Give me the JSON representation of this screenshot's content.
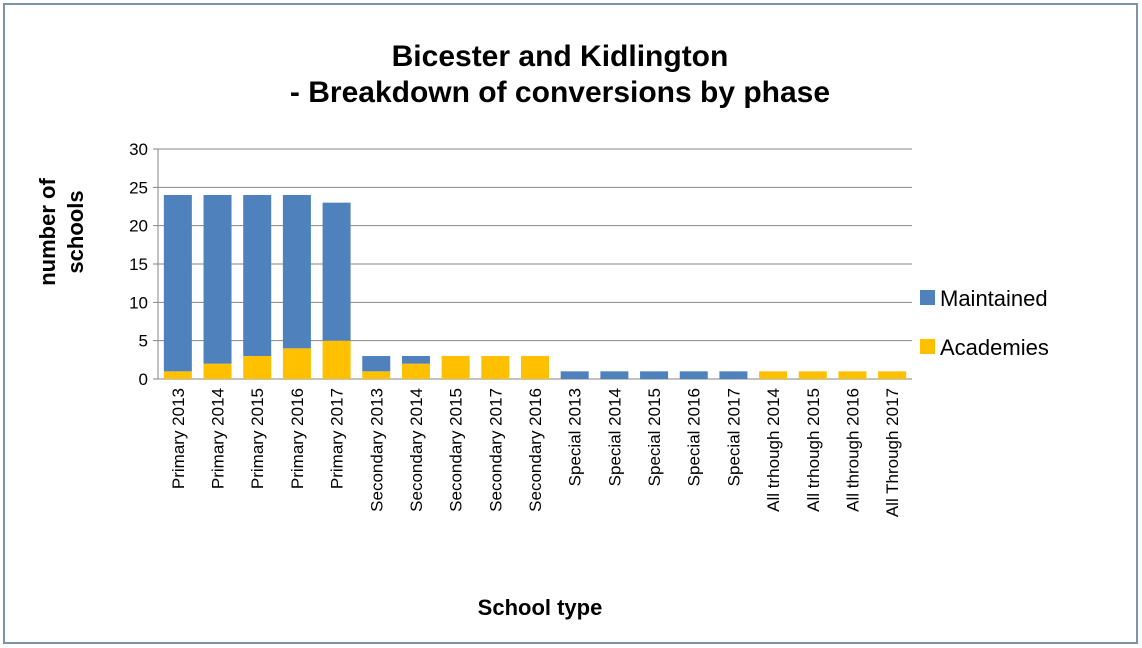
{
  "chart_data": {
    "type": "stacked_bar",
    "title": [
      "Bicester and Kidlington",
      "- Breakdown of conversions by phase"
    ],
    "y_label": [
      "number of",
      "schools"
    ],
    "x_label": "School type",
    "categories": [
      "Primary 2013",
      "Primary 2014",
      "Primary 2015",
      "Primary 2016",
      "Primary 2017",
      "Secondary 2013",
      "Secondary 2014",
      "Secondary 2015",
      "Secondary 2017",
      "Secondary 2016",
      "Special 2013",
      "Special 2014",
      "Special 2015",
      "Special 2016",
      "Special 2017",
      "All trhough 2014",
      "All trhough 2015",
      "All through 2016",
      "All Through 2017"
    ],
    "series": [
      {
        "name": "Academies",
        "color": "#ffc000",
        "values": [
          1,
          2,
          3,
          4,
          5,
          1,
          2,
          3,
          3,
          3,
          0,
          0,
          0,
          0,
          0,
          1,
          1,
          1,
          1
        ]
      },
      {
        "name": "Maintained",
        "color": "#4f81bd",
        "values": [
          23,
          22,
          21,
          20,
          18,
          2,
          1,
          0,
          0,
          0,
          1,
          1,
          1,
          1,
          1,
          0,
          0,
          0,
          0
        ]
      }
    ],
    "ylim": [
      0,
      30
    ],
    "yticks": [
      0,
      5,
      10,
      15,
      20,
      25,
      30
    ],
    "grid": true,
    "legend": "right"
  }
}
